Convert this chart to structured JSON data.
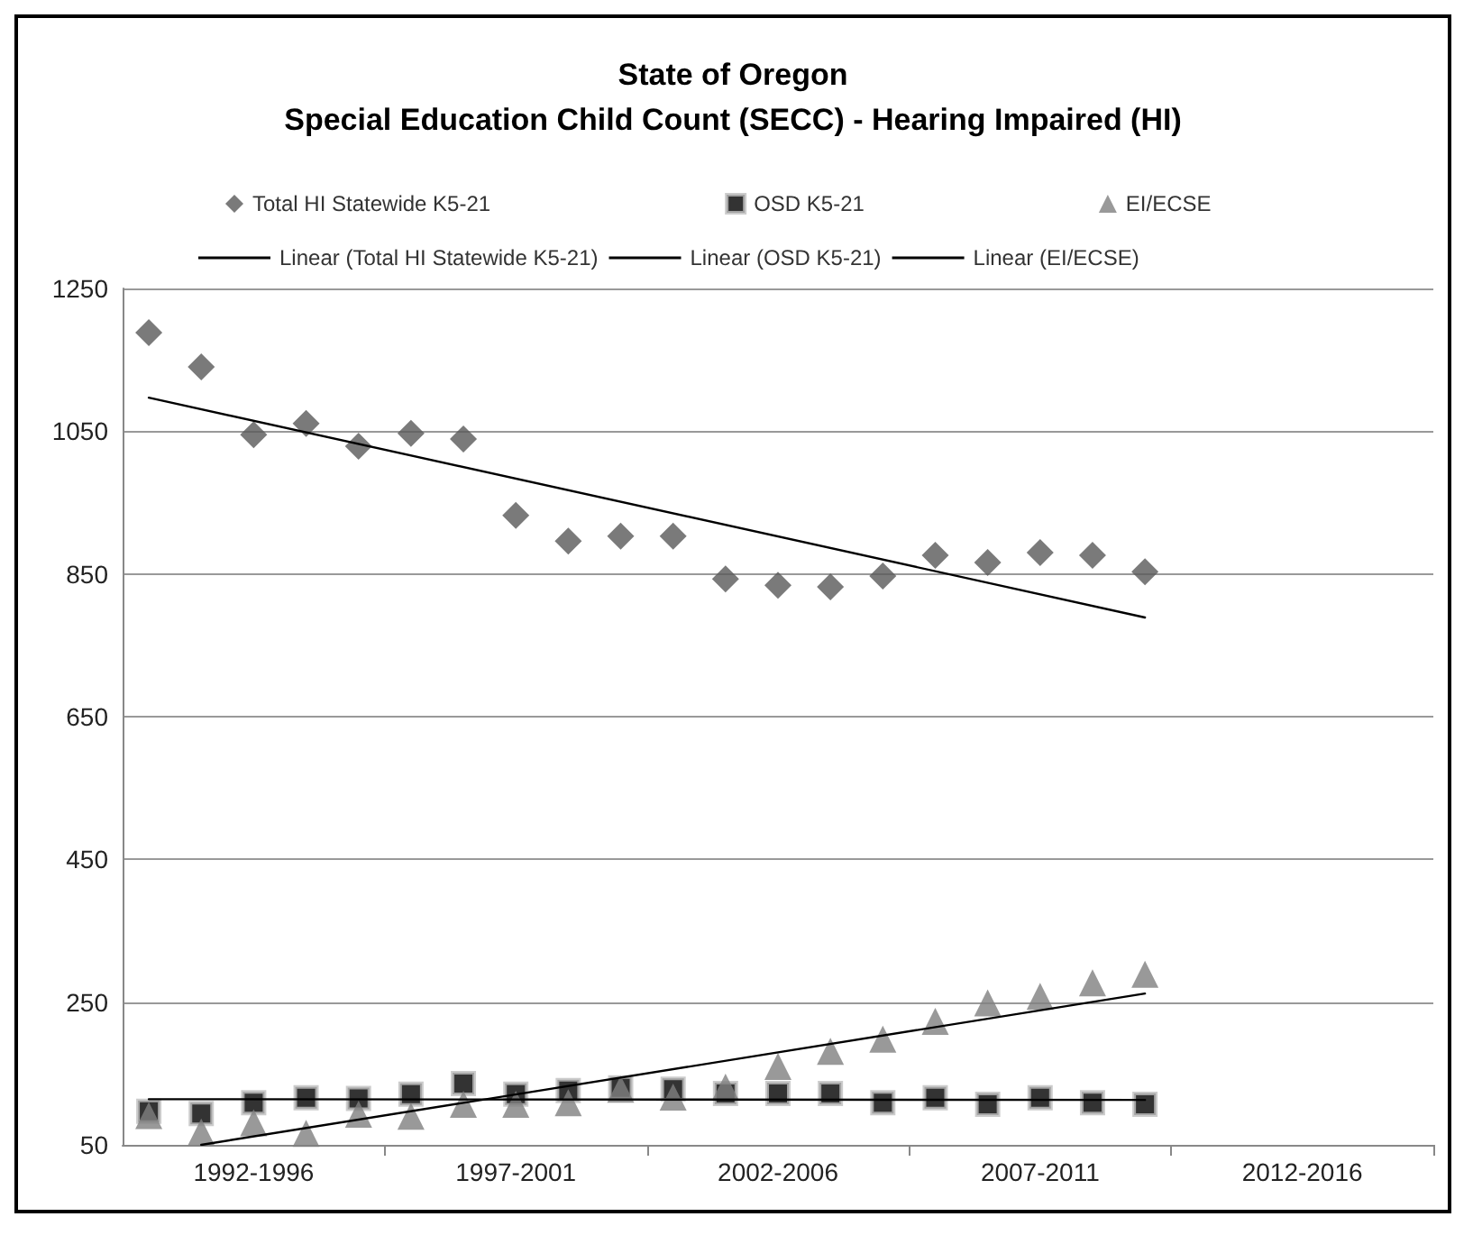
{
  "chart_data": {
    "type": "scatter",
    "title": "State of Oregon",
    "subtitle": "Special Education Child Count (SECC) - Hearing Impaired (HI)",
    "categories": [
      null,
      null,
      "1992-1996",
      null,
      null,
      null,
      null,
      "1997-2001",
      null,
      null,
      null,
      null,
      "2002-2006",
      null,
      null,
      null,
      null,
      "2007-2011",
      null,
      null,
      null,
      null,
      "2012-2016",
      null,
      null
    ],
    "ylim": [
      50,
      1250
    ],
    "yticks": [
      50,
      250,
      450,
      650,
      850,
      1050,
      1250
    ],
    "grid": "y",
    "legend": "top",
    "series": [
      {
        "name": "Total HI Statewide K5-21",
        "color": "#595959",
        "marker": "diamond",
        "values": [
          1188,
          1140,
          1045,
          1061,
          1029,
          1047,
          1039,
          932,
          896,
          903,
          903,
          843,
          834,
          832,
          847,
          876,
          866,
          880,
          876,
          853,
          null,
          null,
          null,
          null,
          null
        ]
      },
      {
        "name": "OSD K5-21",
        "color": "#000000",
        "marker": "square",
        "values": [
          97,
          94,
          109,
          116,
          115,
          121,
          136,
          121,
          126,
          130,
          128,
          122,
          122,
          122,
          109,
          116,
          107,
          116,
          109,
          107,
          null,
          null,
          null,
          null,
          null
        ]
      },
      {
        "name": "EI/ECSE",
        "color": "#808080",
        "marker": "triangle",
        "values": [
          91,
          68,
          81,
          66,
          93,
          90,
          107,
          107,
          109,
          128,
          117,
          131,
          160,
          181,
          198,
          223,
          249,
          258,
          277,
          289,
          null,
          null,
          null,
          null,
          null
        ]
      },
      {
        "name": "Linear (Total HI Statewide K5-21)",
        "type": "line",
        "color": "#000000",
        "marker": "none",
        "line_style": "solid",
        "values": [
          1097,
          null,
          null,
          null,
          null,
          null,
          null,
          null,
          null,
          null,
          null,
          null,
          null,
          null,
          null,
          null,
          null,
          null,
          null,
          789,
          null,
          null,
          null,
          null,
          null
        ]
      },
      {
        "name": "Linear (OSD K5-21)",
        "type": "line",
        "color": "#000000",
        "marker": "none",
        "line_style": "solid",
        "values": [
          114,
          null,
          null,
          null,
          null,
          null,
          null,
          null,
          null,
          null,
          null,
          null,
          null,
          null,
          null,
          null,
          null,
          null,
          null,
          113,
          null,
          null,
          null,
          null,
          null
        ]
      },
      {
        "name": "Linear (EI/ECSE)",
        "type": "line",
        "color": "#000000",
        "marker": "none",
        "line_style": "solid",
        "values": [
          null,
          50,
          null,
          null,
          null,
          null,
          null,
          null,
          null,
          null,
          null,
          null,
          null,
          null,
          null,
          null,
          null,
          null,
          null,
          262,
          null,
          null,
          null,
          null,
          null
        ]
      }
    ]
  }
}
